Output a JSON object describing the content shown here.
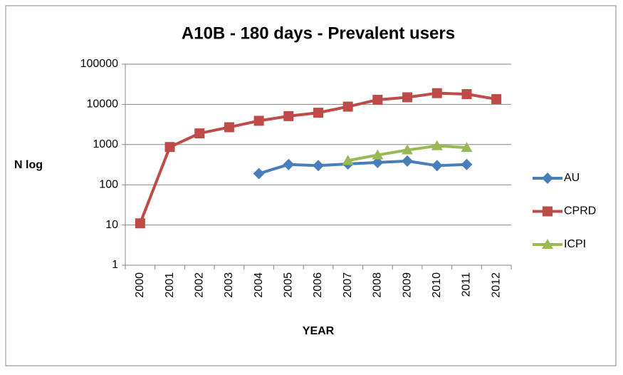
{
  "chart_data": {
    "type": "line",
    "title": "A10B - 180 days - Prevalent users",
    "xlabel": "YEAR",
    "ylabel": "N log",
    "categories": [
      "2000",
      "2001",
      "2002",
      "2003",
      "2004",
      "2005",
      "2006",
      "2007",
      "2008",
      "2009",
      "2010",
      "2011",
      "2012"
    ],
    "series": [
      {
        "name": "AU",
        "color": "#4a7ebb",
        "marker": "diamond",
        "values": [
          null,
          null,
          null,
          null,
          190,
          320,
          300,
          330,
          360,
          390,
          300,
          320,
          null
        ]
      },
      {
        "name": "CPRD",
        "color": "#be4b48",
        "marker": "square",
        "values": [
          11,
          870,
          1900,
          2700,
          3900,
          5100,
          6200,
          8800,
          13000,
          15000,
          19000,
          18000,
          13500
        ]
      },
      {
        "name": "ICPI",
        "color": "#98b954",
        "marker": "triangle",
        "values": [
          null,
          null,
          null,
          null,
          null,
          null,
          null,
          400,
          550,
          730,
          930,
          840,
          null
        ]
      }
    ],
    "log_scale": true,
    "ylim": [
      1,
      100000
    ],
    "yticks": [
      1,
      10,
      100,
      1000,
      10000,
      100000
    ],
    "grid": true,
    "legend": "right"
  }
}
